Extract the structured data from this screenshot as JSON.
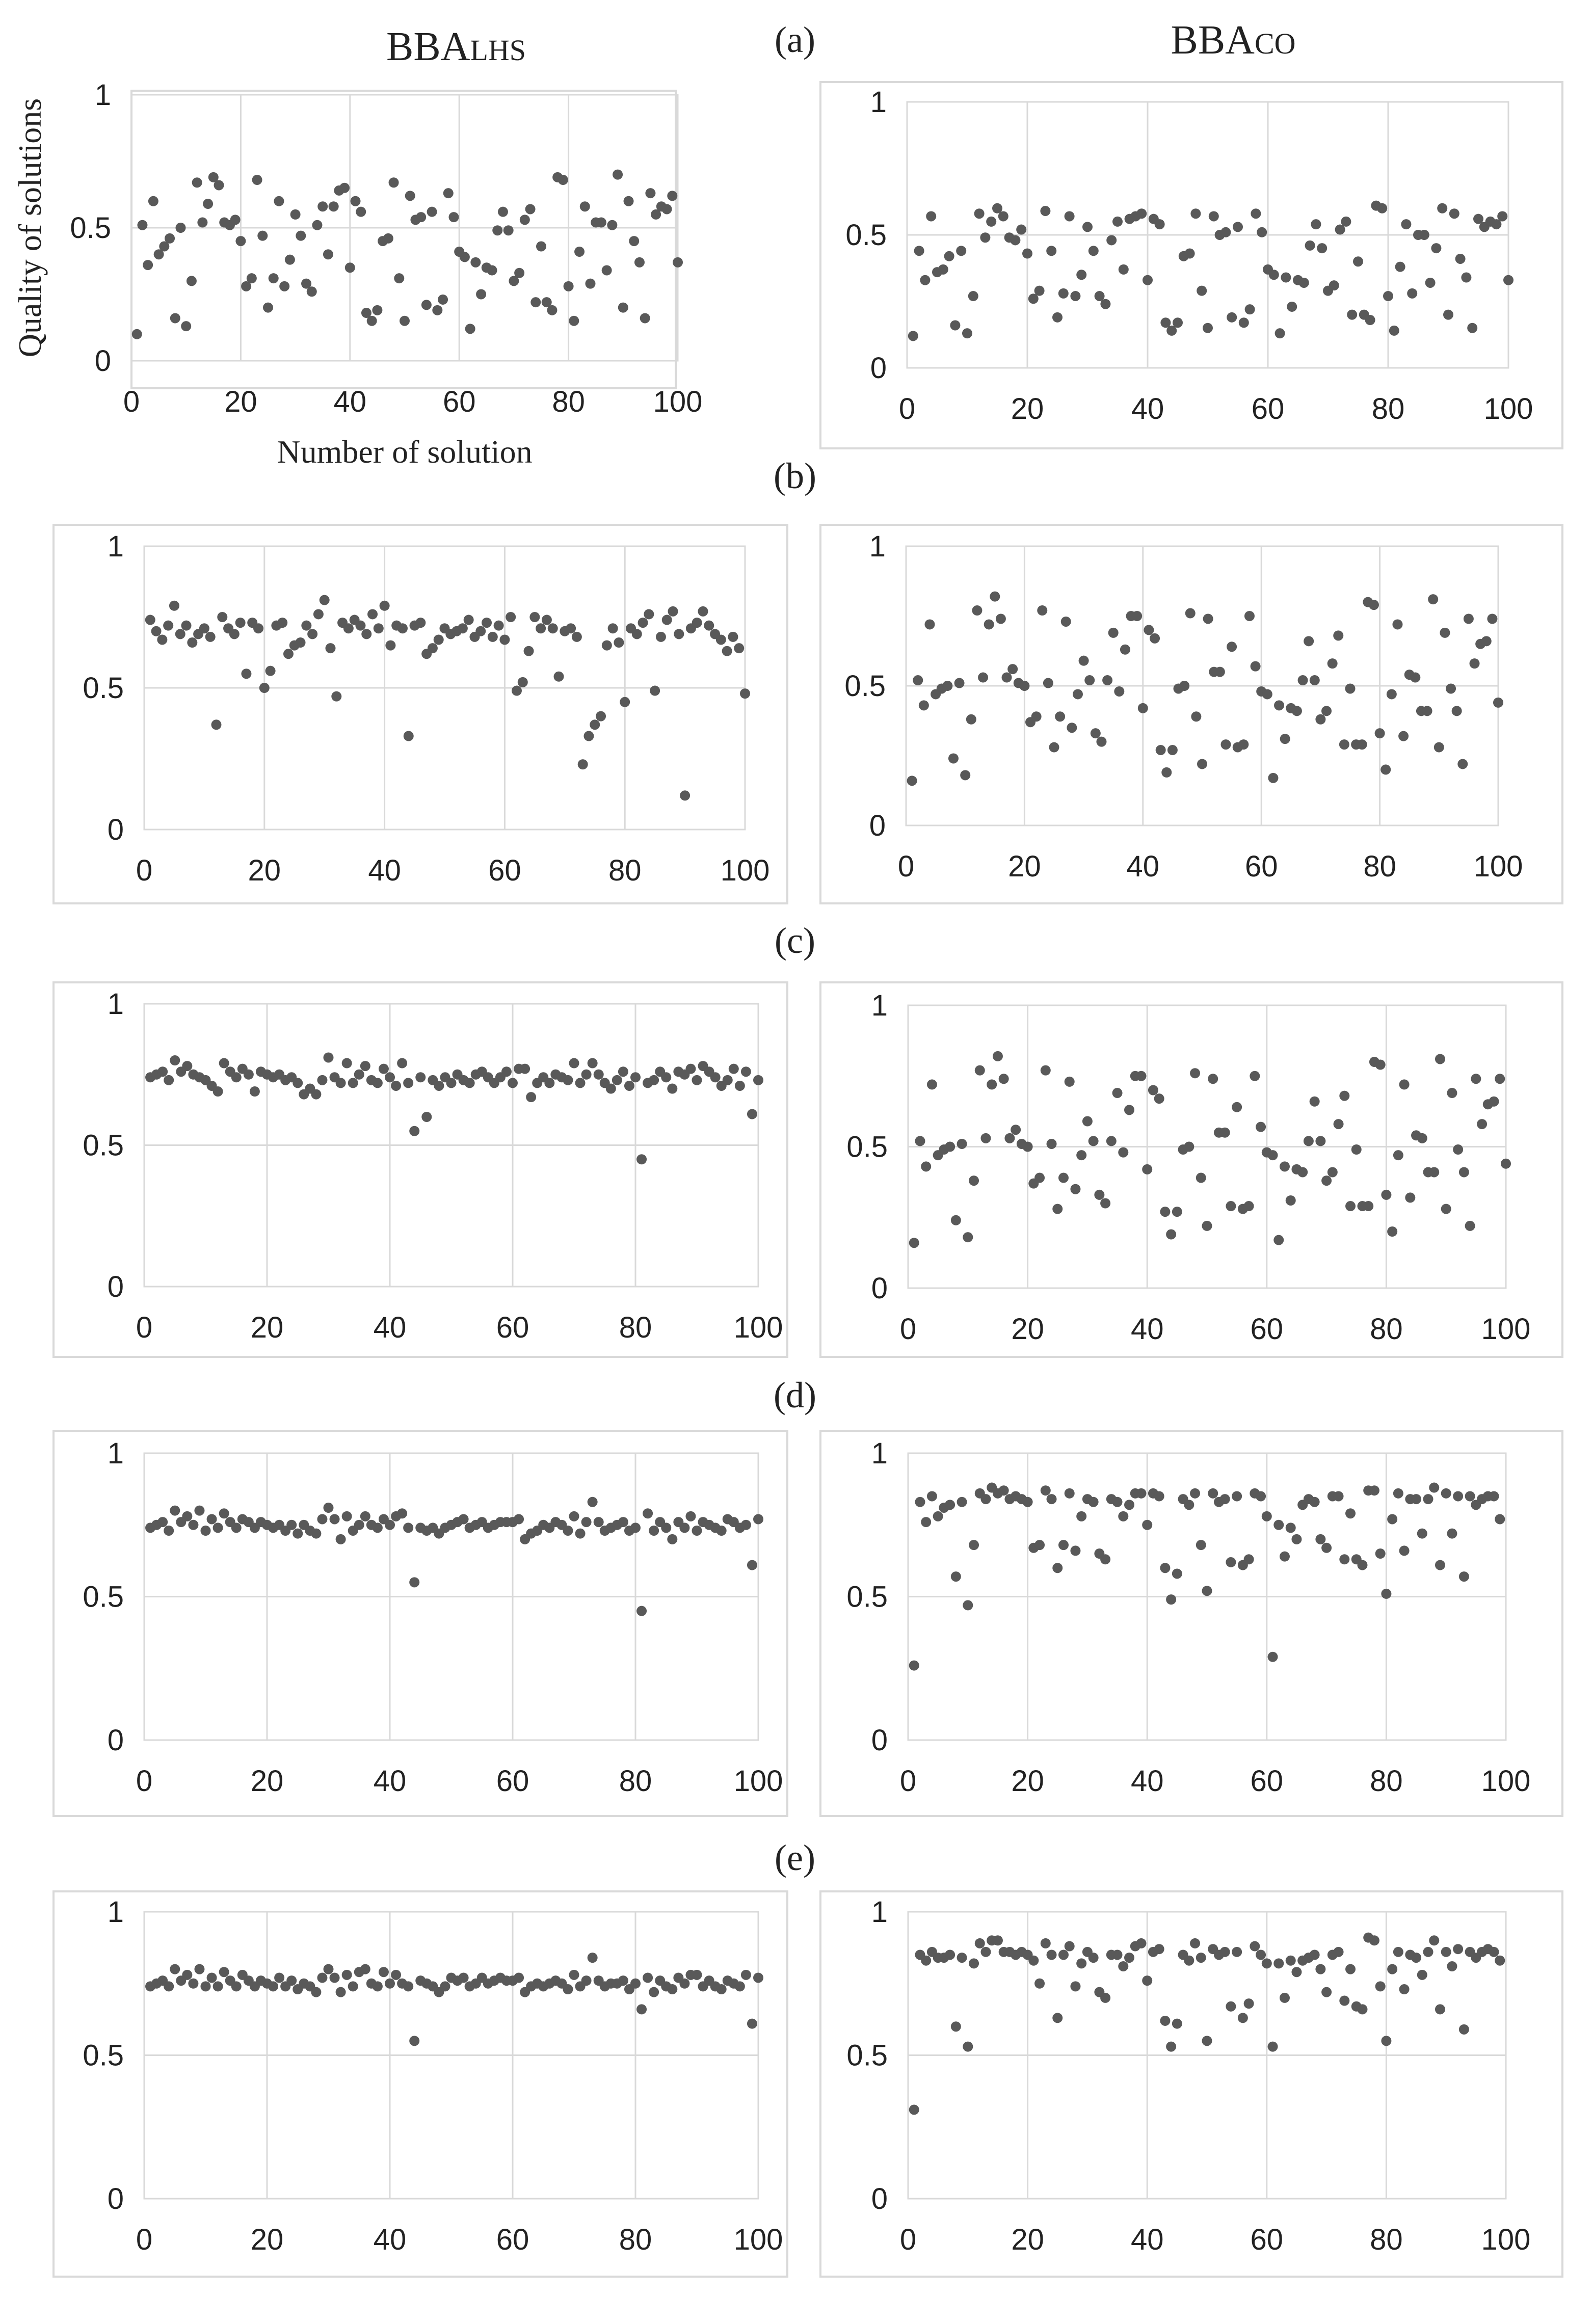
{
  "figure": {
    "column_titles": {
      "lhs_base": "BBA",
      "lhs_sub": "LHS",
      "co_base": "BBA",
      "co_sub": "CO"
    },
    "panel_labels": [
      "(a)",
      "(b)",
      "(c)",
      "(d)",
      "(e)"
    ],
    "ylabel": "Quality of solutions",
    "xlabel": "Number of solution",
    "colors": {
      "point": "#595959",
      "grid": "#d9d9d9",
      "frame": "#d9d9d9",
      "text": "#222222"
    }
  },
  "chart_data": [
    {
      "type": "scatter",
      "panel": "(a)",
      "series_name": "BBA_LHS",
      "x_start": 1,
      "xlim": [
        0,
        100
      ],
      "ylim": [
        0,
        1
      ],
      "xticks": [
        "0",
        "20",
        "40",
        "60",
        "80",
        "100"
      ],
      "yticks": [
        "0",
        "0.5",
        "1"
      ],
      "values": [
        0.1,
        0.51,
        0.36,
        0.6,
        0.4,
        0.43,
        0.46,
        0.16,
        0.5,
        0.13,
        0.3,
        0.67,
        0.52,
        0.59,
        0.69,
        0.66,
        0.52,
        0.51,
        0.53,
        0.45,
        0.28,
        0.31,
        0.68,
        0.47,
        0.2,
        0.31,
        0.6,
        0.28,
        0.38,
        0.55,
        0.47,
        0.29,
        0.26,
        0.51,
        0.58,
        0.4,
        0.58,
        0.64,
        0.65,
        0.35,
        0.6,
        0.56,
        0.18,
        0.15,
        0.19,
        0.45,
        0.46,
        0.67,
        0.31,
        0.15,
        0.62,
        0.53,
        0.54,
        0.21,
        0.56,
        0.19,
        0.23,
        0.63,
        0.54,
        0.41,
        0.39,
        0.12,
        0.37,
        0.25,
        0.35,
        0.34,
        0.49,
        0.56,
        0.49,
        0.3,
        0.33,
        0.53,
        0.57,
        0.22,
        0.43,
        0.22,
        0.19,
        0.69,
        0.68,
        0.28,
        0.15,
        0.41,
        0.58,
        0.29,
        0.52,
        0.52,
        0.34,
        0.51,
        0.7,
        0.2,
        0.6,
        0.45,
        0.37,
        0.16,
        0.63,
        0.55,
        0.58,
        0.57,
        0.62,
        0.37
      ]
    },
    {
      "type": "scatter",
      "panel": "(a)",
      "series_name": "BBA_CO",
      "x_start": 1,
      "xlim": [
        0,
        100
      ],
      "ylim": [
        0,
        1
      ],
      "xticks": [
        "0",
        "20",
        "40",
        "60",
        "80",
        "100"
      ],
      "yticks": [
        "0",
        "0.5",
        "1"
      ],
      "values": [
        0.12,
        0.44,
        0.33,
        0.57,
        0.36,
        0.37,
        0.42,
        0.16,
        0.44,
        0.13,
        0.27,
        0.58,
        0.49,
        0.55,
        0.6,
        0.57,
        0.49,
        0.48,
        0.52,
        0.43,
        0.26,
        0.29,
        0.59,
        0.44,
        0.19,
        0.28,
        0.57,
        0.27,
        0.35,
        0.53,
        0.44,
        0.27,
        0.24,
        0.48,
        0.55,
        0.37,
        0.56,
        0.57,
        0.58,
        0.33,
        0.56,
        0.54,
        0.17,
        0.14,
        0.17,
        0.42,
        0.43,
        0.58,
        0.29,
        0.15,
        0.57,
        0.5,
        0.51,
        0.19,
        0.53,
        0.17,
        0.22,
        0.58,
        0.51,
        0.37,
        0.35,
        0.13,
        0.34,
        0.23,
        0.33,
        0.32,
        0.46,
        0.54,
        0.45,
        0.29,
        0.31,
        0.52,
        0.55,
        0.2,
        0.4,
        0.2,
        0.18,
        0.61,
        0.6,
        0.27,
        0.14,
        0.38,
        0.54,
        0.28,
        0.5,
        0.5,
        0.32,
        0.45,
        0.6,
        0.2,
        0.58,
        0.41,
        0.34,
        0.15,
        0.56,
        0.53,
        0.55,
        0.54,
        0.57,
        0.33
      ]
    },
    {
      "type": "scatter",
      "panel": "(b)",
      "series_name": "BBA_LHS",
      "x_start": 1,
      "xlim": [
        0,
        100
      ],
      "ylim": [
        0,
        1
      ],
      "xticks": [
        "0",
        "20",
        "40",
        "60",
        "80",
        "100"
      ],
      "yticks": [
        "0",
        "0.5",
        "1"
      ],
      "values": [
        0.74,
        0.7,
        0.67,
        0.72,
        0.79,
        0.69,
        0.72,
        0.66,
        0.69,
        0.71,
        0.68,
        0.37,
        0.75,
        0.71,
        0.69,
        0.73,
        0.55,
        0.73,
        0.71,
        0.5,
        0.56,
        0.72,
        0.73,
        0.62,
        0.65,
        0.66,
        0.72,
        0.69,
        0.76,
        0.81,
        0.64,
        0.47,
        0.73,
        0.71,
        0.74,
        0.72,
        0.69,
        0.76,
        0.71,
        0.79,
        0.65,
        0.72,
        0.71,
        0.33,
        0.72,
        0.73,
        0.62,
        0.64,
        0.67,
        0.71,
        0.69,
        0.7,
        0.71,
        0.74,
        0.68,
        0.7,
        0.73,
        0.68,
        0.72,
        0.67,
        0.75,
        0.49,
        0.52,
        0.63,
        0.75,
        0.71,
        0.74,
        0.71,
        0.54,
        0.7,
        0.71,
        0.68,
        0.23,
        0.33,
        0.37,
        0.4,
        0.65,
        0.71,
        0.66,
        0.45,
        0.71,
        0.69,
        0.73,
        0.76,
        0.49,
        0.68,
        0.74,
        0.77,
        0.69,
        0.12,
        0.71,
        0.73,
        0.77,
        0.72,
        0.69,
        0.67,
        0.63,
        0.68,
        0.64,
        0.48
      ]
    },
    {
      "type": "scatter",
      "panel": "(b)",
      "series_name": "BBA_CO",
      "x_start": 1,
      "xlim": [
        0,
        100
      ],
      "ylim": [
        0,
        1
      ],
      "xticks": [
        "0",
        "20",
        "40",
        "60",
        "80",
        "100"
      ],
      "yticks": [
        "0",
        "0.5",
        "1"
      ],
      "values": [
        0.16,
        0.52,
        0.43,
        0.72,
        0.47,
        0.49,
        0.5,
        0.24,
        0.51,
        0.18,
        0.38,
        0.77,
        0.53,
        0.72,
        0.82,
        0.74,
        0.53,
        0.56,
        0.51,
        0.5,
        0.37,
        0.39,
        0.77,
        0.51,
        0.28,
        0.39,
        0.73,
        0.35,
        0.47,
        0.59,
        0.52,
        0.33,
        0.3,
        0.52,
        0.69,
        0.48,
        0.63,
        0.75,
        0.75,
        0.42,
        0.7,
        0.67,
        0.27,
        0.19,
        0.27,
        0.49,
        0.5,
        0.76,
        0.39,
        0.22,
        0.74,
        0.55,
        0.55,
        0.29,
        0.64,
        0.28,
        0.29,
        0.75,
        0.57,
        0.48,
        0.47,
        0.17,
        0.43,
        0.31,
        0.42,
        0.41,
        0.52,
        0.66,
        0.52,
        0.38,
        0.41,
        0.58,
        0.68,
        0.29,
        0.49,
        0.29,
        0.29,
        0.8,
        0.79,
        0.33,
        0.2,
        0.47,
        0.72,
        0.32,
        0.54,
        0.53,
        0.41,
        0.41,
        0.81,
        0.28,
        0.69,
        0.49,
        0.41,
        0.22,
        0.74,
        0.58,
        0.65,
        0.66,
        0.74,
        0.44
      ]
    },
    {
      "type": "scatter",
      "panel": "(c)",
      "series_name": "BBA_LHS",
      "x_start": 1,
      "xlim": [
        0,
        100
      ],
      "ylim": [
        0,
        1
      ],
      "xticks": [
        "0",
        "20",
        "40",
        "60",
        "80",
        "100"
      ],
      "yticks": [
        "0",
        "0.5",
        "1"
      ],
      "values": [
        0.74,
        0.75,
        0.76,
        0.73,
        0.8,
        0.76,
        0.78,
        0.75,
        0.74,
        0.73,
        0.71,
        0.69,
        0.79,
        0.76,
        0.74,
        0.77,
        0.75,
        0.69,
        0.76,
        0.75,
        0.74,
        0.75,
        0.73,
        0.74,
        0.72,
        0.68,
        0.7,
        0.68,
        0.73,
        0.81,
        0.74,
        0.72,
        0.79,
        0.72,
        0.75,
        0.78,
        0.73,
        0.72,
        0.77,
        0.74,
        0.71,
        0.79,
        0.72,
        0.55,
        0.74,
        0.6,
        0.73,
        0.71,
        0.74,
        0.72,
        0.75,
        0.73,
        0.72,
        0.75,
        0.76,
        0.74,
        0.72,
        0.74,
        0.76,
        0.72,
        0.77,
        0.77,
        0.67,
        0.72,
        0.74,
        0.72,
        0.75,
        0.74,
        0.73,
        0.79,
        0.72,
        0.75,
        0.79,
        0.75,
        0.72,
        0.7,
        0.73,
        0.76,
        0.71,
        0.74,
        0.45,
        0.72,
        0.73,
        0.76,
        0.74,
        0.7,
        0.76,
        0.75,
        0.77,
        0.73,
        0.78,
        0.76,
        0.74,
        0.71,
        0.73,
        0.77,
        0.71,
        0.76,
        0.61,
        0.73
      ]
    },
    {
      "type": "scatter",
      "panel": "(c)",
      "series_name": "BBA_CO",
      "x_start": 1,
      "xlim": [
        0,
        100
      ],
      "ylim": [
        0,
        1
      ],
      "xticks": [
        "0",
        "20",
        "40",
        "60",
        "80",
        "100"
      ],
      "yticks": [
        "0",
        "0.5",
        "1"
      ],
      "values": [
        0.16,
        0.52,
        0.43,
        0.72,
        0.47,
        0.49,
        0.5,
        0.24,
        0.51,
        0.18,
        0.38,
        0.77,
        0.53,
        0.72,
        0.82,
        0.74,
        0.53,
        0.56,
        0.51,
        0.5,
        0.37,
        0.39,
        0.77,
        0.51,
        0.28,
        0.39,
        0.73,
        0.35,
        0.47,
        0.59,
        0.52,
        0.33,
        0.3,
        0.52,
        0.69,
        0.48,
        0.63,
        0.75,
        0.75,
        0.42,
        0.7,
        0.67,
        0.27,
        0.19,
        0.27,
        0.49,
        0.5,
        0.76,
        0.39,
        0.22,
        0.74,
        0.55,
        0.55,
        0.29,
        0.64,
        0.28,
        0.29,
        0.75,
        0.57,
        0.48,
        0.47,
        0.17,
        0.43,
        0.31,
        0.42,
        0.41,
        0.52,
        0.66,
        0.52,
        0.38,
        0.41,
        0.58,
        0.68,
        0.29,
        0.49,
        0.29,
        0.29,
        0.8,
        0.79,
        0.33,
        0.2,
        0.47,
        0.72,
        0.32,
        0.54,
        0.53,
        0.41,
        0.41,
        0.81,
        0.28,
        0.69,
        0.49,
        0.41,
        0.22,
        0.74,
        0.58,
        0.65,
        0.66,
        0.74,
        0.44
      ]
    },
    {
      "type": "scatter",
      "panel": "(d)",
      "series_name": "BBA_LHS",
      "x_start": 1,
      "xlim": [
        0,
        100
      ],
      "ylim": [
        0,
        1
      ],
      "xticks": [
        "0",
        "20",
        "40",
        "60",
        "80",
        "100"
      ],
      "yticks": [
        "0",
        "0.5",
        "1"
      ],
      "values": [
        0.74,
        0.75,
        0.76,
        0.73,
        0.8,
        0.76,
        0.78,
        0.75,
        0.8,
        0.73,
        0.77,
        0.74,
        0.79,
        0.76,
        0.74,
        0.77,
        0.76,
        0.74,
        0.76,
        0.75,
        0.74,
        0.75,
        0.73,
        0.75,
        0.72,
        0.75,
        0.73,
        0.72,
        0.77,
        0.81,
        0.77,
        0.7,
        0.78,
        0.73,
        0.75,
        0.78,
        0.75,
        0.74,
        0.77,
        0.75,
        0.78,
        0.79,
        0.74,
        0.55,
        0.74,
        0.73,
        0.74,
        0.72,
        0.74,
        0.75,
        0.76,
        0.77,
        0.74,
        0.75,
        0.76,
        0.74,
        0.75,
        0.76,
        0.76,
        0.76,
        0.77,
        0.7,
        0.72,
        0.73,
        0.75,
        0.74,
        0.76,
        0.75,
        0.73,
        0.78,
        0.72,
        0.76,
        0.83,
        0.76,
        0.73,
        0.74,
        0.75,
        0.76,
        0.73,
        0.74,
        0.45,
        0.79,
        0.73,
        0.76,
        0.74,
        0.7,
        0.76,
        0.74,
        0.78,
        0.73,
        0.76,
        0.75,
        0.74,
        0.73,
        0.77,
        0.76,
        0.74,
        0.75,
        0.61,
        0.77
      ]
    },
    {
      "type": "scatter",
      "panel": "(d)",
      "series_name": "BBA_CO",
      "x_start": 1,
      "xlim": [
        0,
        100
      ],
      "ylim": [
        0,
        1
      ],
      "xticks": [
        "0",
        "20",
        "40",
        "60",
        "80",
        "100"
      ],
      "yticks": [
        "0",
        "0.5",
        "1"
      ],
      "values": [
        0.26,
        0.83,
        0.76,
        0.85,
        0.78,
        0.81,
        0.82,
        0.57,
        0.83,
        0.47,
        0.68,
        0.86,
        0.84,
        0.88,
        0.86,
        0.87,
        0.84,
        0.85,
        0.84,
        0.83,
        0.67,
        0.68,
        0.87,
        0.84,
        0.6,
        0.68,
        0.86,
        0.66,
        0.78,
        0.84,
        0.83,
        0.65,
        0.63,
        0.84,
        0.83,
        0.78,
        0.82,
        0.86,
        0.86,
        0.75,
        0.86,
        0.85,
        0.6,
        0.49,
        0.58,
        0.84,
        0.82,
        0.86,
        0.68,
        0.52,
        0.86,
        0.83,
        0.84,
        0.62,
        0.85,
        0.61,
        0.63,
        0.86,
        0.85,
        0.78,
        0.29,
        0.75,
        0.64,
        0.74,
        0.7,
        0.82,
        0.84,
        0.83,
        0.7,
        0.67,
        0.85,
        0.85,
        0.63,
        0.79,
        0.63,
        0.61,
        0.87,
        0.87,
        0.65,
        0.51,
        0.77,
        0.86,
        0.66,
        0.84,
        0.84,
        0.72,
        0.84,
        0.88,
        0.61,
        0.86,
        0.72,
        0.85,
        0.57,
        0.85,
        0.82,
        0.84,
        0.85,
        0.85,
        0.77
      ]
    },
    {
      "type": "scatter",
      "panel": "(e)",
      "series_name": "BBA_LHS",
      "x_start": 1,
      "xlim": [
        0,
        100
      ],
      "ylim": [
        0,
        1
      ],
      "xticks": [
        "0",
        "20",
        "40",
        "60",
        "80",
        "100"
      ],
      "yticks": [
        "0",
        "0.5",
        "1"
      ],
      "values": [
        0.74,
        0.75,
        0.76,
        0.74,
        0.8,
        0.76,
        0.78,
        0.75,
        0.8,
        0.74,
        0.77,
        0.74,
        0.79,
        0.76,
        0.74,
        0.78,
        0.76,
        0.74,
        0.76,
        0.75,
        0.74,
        0.77,
        0.74,
        0.76,
        0.73,
        0.75,
        0.74,
        0.72,
        0.77,
        0.8,
        0.77,
        0.72,
        0.78,
        0.74,
        0.79,
        0.8,
        0.75,
        0.74,
        0.79,
        0.75,
        0.78,
        0.75,
        0.74,
        0.55,
        0.76,
        0.75,
        0.74,
        0.72,
        0.74,
        0.77,
        0.76,
        0.77,
        0.74,
        0.75,
        0.77,
        0.75,
        0.76,
        0.77,
        0.76,
        0.76,
        0.77,
        0.72,
        0.74,
        0.75,
        0.74,
        0.75,
        0.76,
        0.75,
        0.73,
        0.78,
        0.74,
        0.76,
        0.84,
        0.76,
        0.74,
        0.75,
        0.75,
        0.76,
        0.73,
        0.75,
        0.66,
        0.77,
        0.72,
        0.76,
        0.74,
        0.73,
        0.77,
        0.75,
        0.78,
        0.78,
        0.74,
        0.76,
        0.74,
        0.73,
        0.76,
        0.75,
        0.74,
        0.78,
        0.61,
        0.77
      ]
    },
    {
      "type": "scatter",
      "panel": "(e)",
      "series_name": "BBA_CO",
      "x_start": 1,
      "xlim": [
        0,
        100
      ],
      "ylim": [
        0,
        1
      ],
      "xticks": [
        "0",
        "20",
        "40",
        "60",
        "80",
        "100"
      ],
      "yticks": [
        "0",
        "0.5",
        "1"
      ],
      "values": [
        0.31,
        0.85,
        0.83,
        0.86,
        0.84,
        0.84,
        0.85,
        0.6,
        0.84,
        0.53,
        0.82,
        0.89,
        0.86,
        0.9,
        0.9,
        0.86,
        0.86,
        0.85,
        0.86,
        0.85,
        0.83,
        0.75,
        0.89,
        0.85,
        0.63,
        0.85,
        0.88,
        0.74,
        0.82,
        0.86,
        0.84,
        0.72,
        0.7,
        0.85,
        0.85,
        0.81,
        0.84,
        0.88,
        0.89,
        0.76,
        0.86,
        0.87,
        0.62,
        0.53,
        0.61,
        0.85,
        0.83,
        0.89,
        0.84,
        0.55,
        0.87,
        0.85,
        0.86,
        0.67,
        0.86,
        0.63,
        0.68,
        0.88,
        0.85,
        0.82,
        0.53,
        0.82,
        0.7,
        0.83,
        0.79,
        0.83,
        0.84,
        0.85,
        0.8,
        0.72,
        0.85,
        0.86,
        0.69,
        0.8,
        0.67,
        0.66,
        0.91,
        0.9,
        0.74,
        0.55,
        0.8,
        0.86,
        0.73,
        0.85,
        0.84,
        0.78,
        0.86,
        0.9,
        0.66,
        0.86,
        0.81,
        0.87,
        0.59,
        0.86,
        0.84,
        0.86,
        0.87,
        0.86,
        0.83
      ]
    }
  ]
}
